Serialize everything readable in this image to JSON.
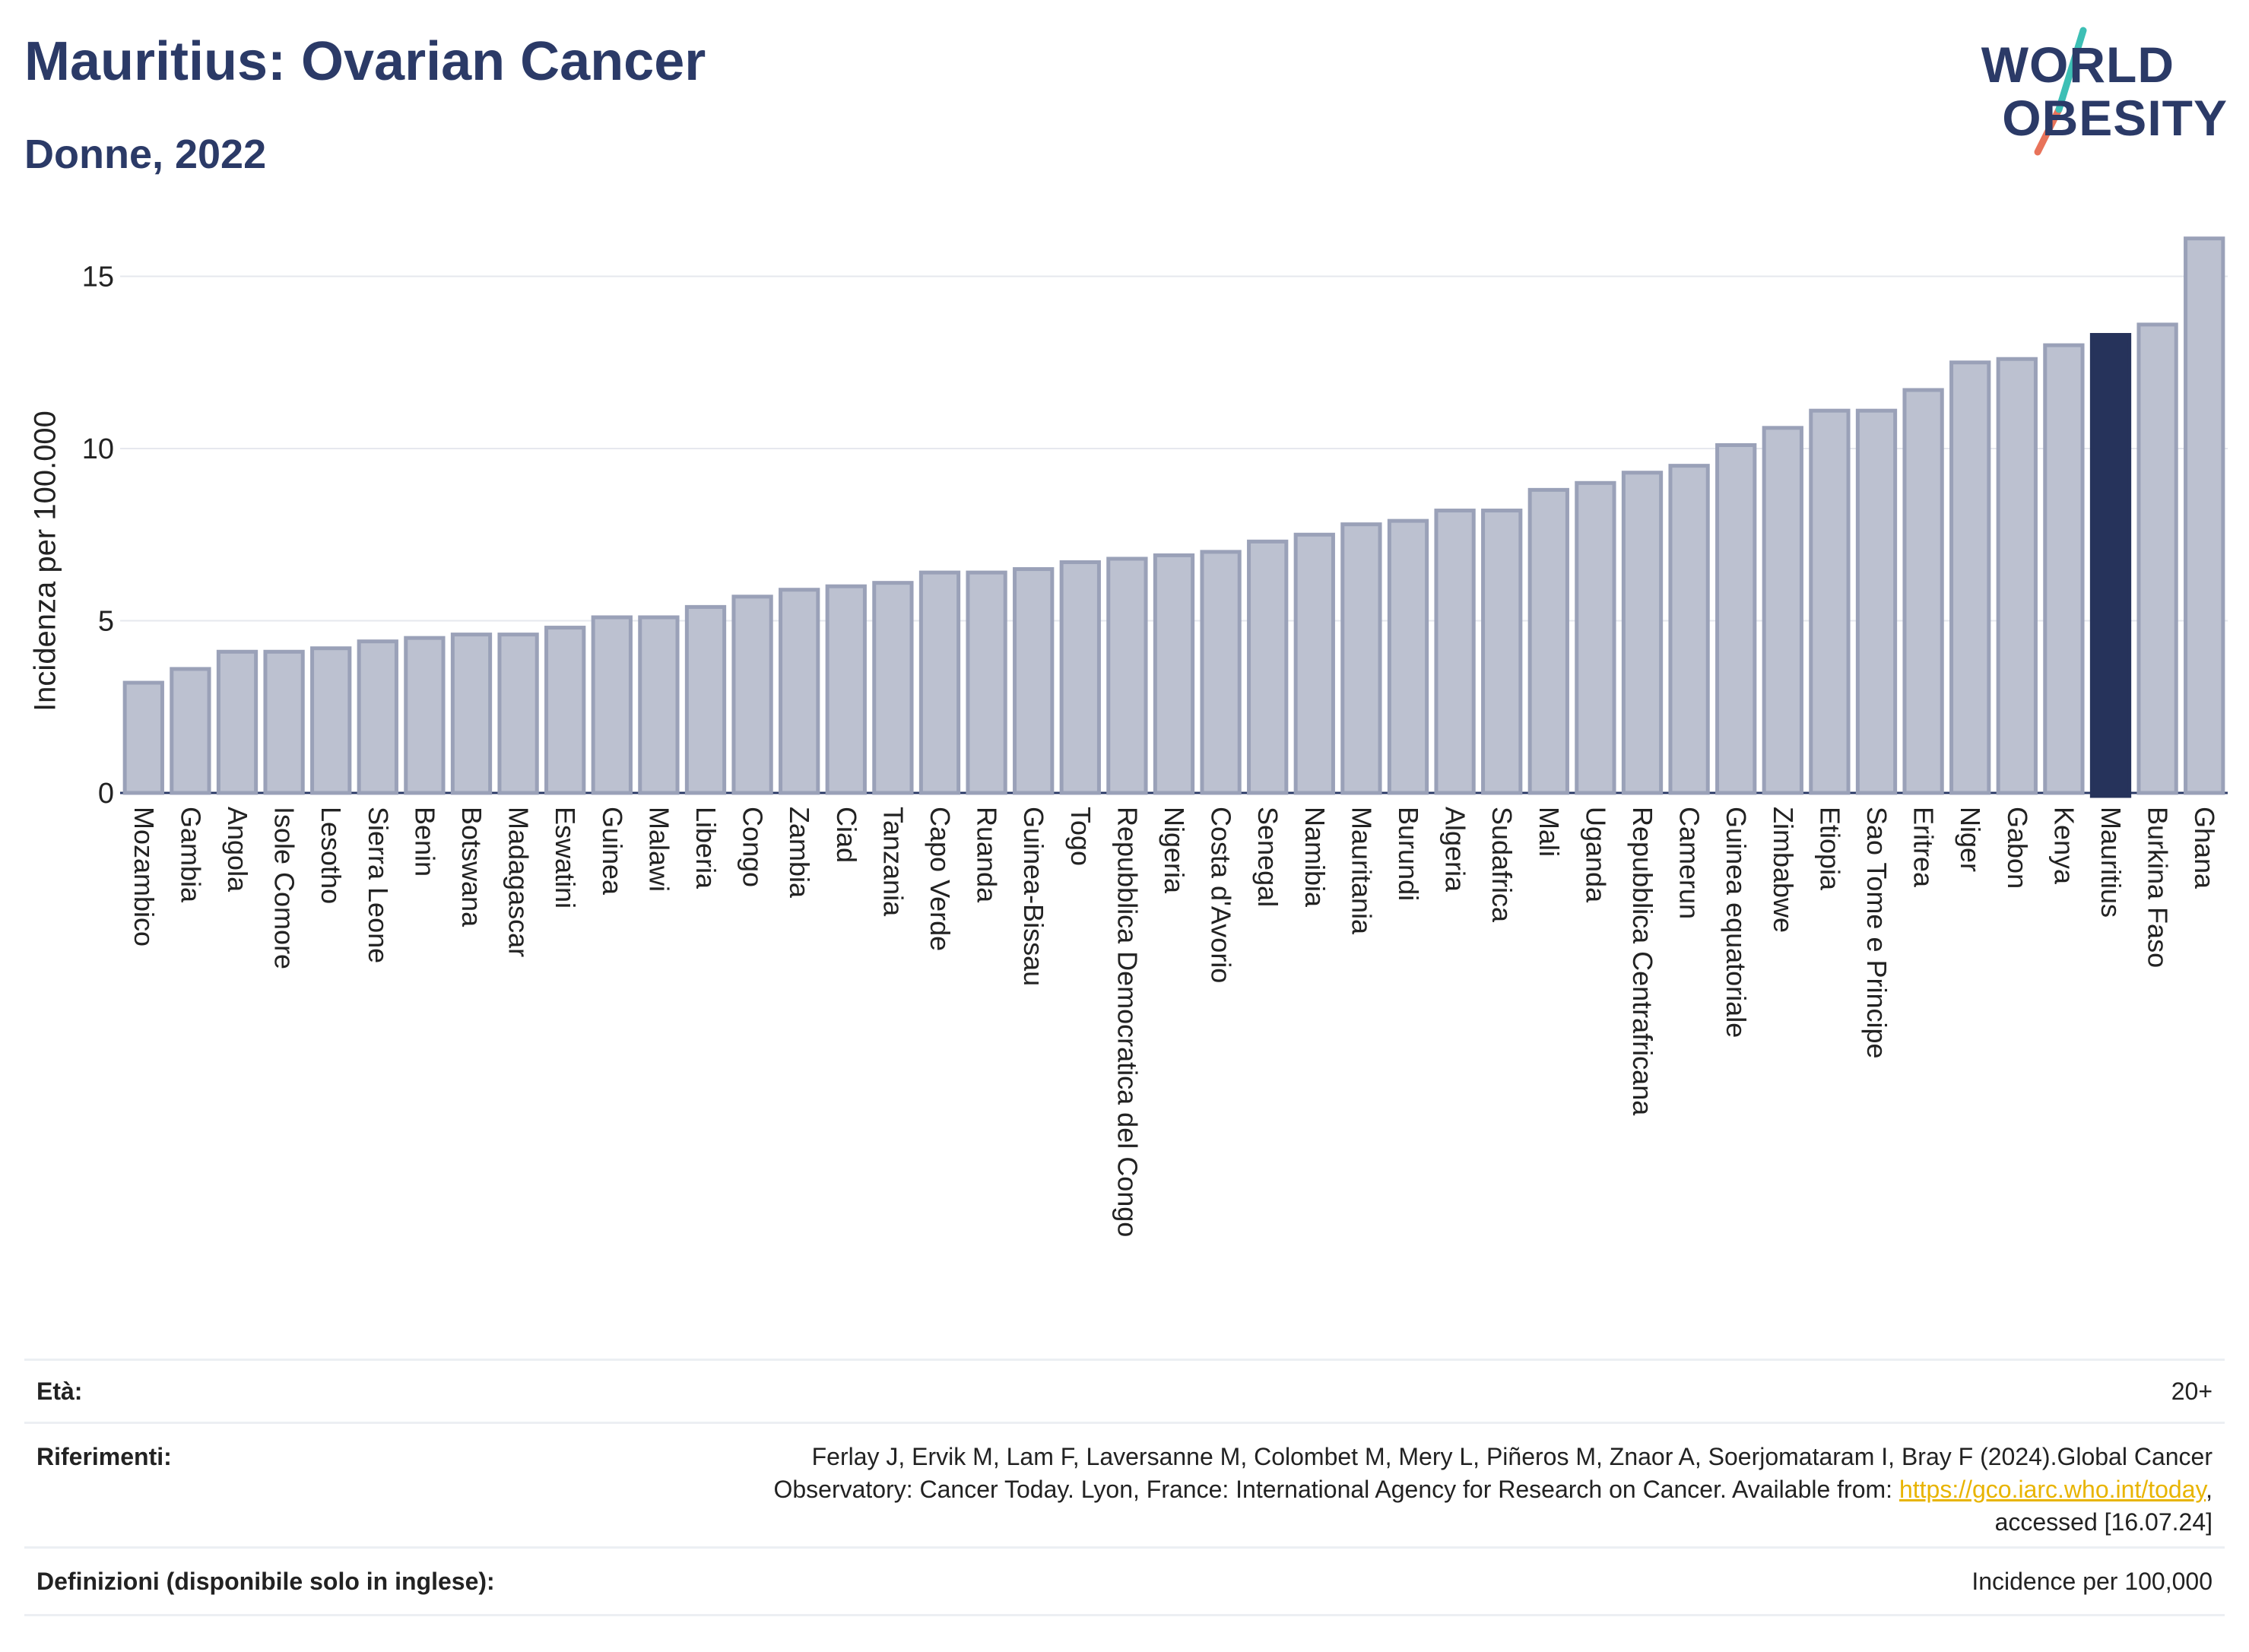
{
  "header": {
    "title": "Mauritius: Ovarian Cancer",
    "subtitle": "Donne, 2022"
  },
  "logo": {
    "line1": "WORLD",
    "line2": "OBESITY"
  },
  "chart_data": {
    "type": "bar",
    "ylabel": "Incidenza per 100.000",
    "ylim": [
      0,
      16.5
    ],
    "yticks": [
      0,
      5,
      10,
      15
    ],
    "grid": true,
    "highlight": "Mauritius",
    "colors": {
      "bar": "#bcc1d0",
      "bar_edge": "#9aa1b8",
      "highlight": "#26335b"
    },
    "categories": [
      "Mozambico",
      "Gambia",
      "Angola",
      "Isole Comore",
      "Lesotho",
      "Sierra Leone",
      "Benin",
      "Botswana",
      "Madagascar",
      "Eswatini",
      "Guinea",
      "Malawi",
      "Liberia",
      "Congo",
      "Zambia",
      "Ciad",
      "Tanzania",
      "Capo Verde",
      "Ruanda",
      "Guinea-Bissau",
      "Togo",
      "Repubblica Democratica del Congo",
      "Nigeria",
      "Costa d'Avorio",
      "Senegal",
      "Namibia",
      "Mauritania",
      "Burundi",
      "Algeria",
      "Sudafrica",
      "Mali",
      "Uganda",
      "Repubblica Centrafricana",
      "Camerun",
      "Guinea equatoriale",
      "Zimbabwe",
      "Etiopia",
      "Sao Tome e Principe",
      "Eritrea",
      "Niger",
      "Gabon",
      "Kenya",
      "Mauritius",
      "Burkina Faso",
      "Ghana"
    ],
    "values": [
      3.2,
      3.6,
      4.1,
      4.1,
      4.2,
      4.4,
      4.5,
      4.6,
      4.6,
      4.8,
      5.1,
      5.1,
      5.4,
      5.7,
      5.9,
      6.0,
      6.1,
      6.4,
      6.4,
      6.5,
      6.7,
      6.8,
      6.9,
      7.0,
      7.3,
      7.5,
      7.8,
      7.9,
      8.2,
      8.2,
      8.8,
      9.0,
      9.3,
      9.5,
      10.1,
      10.6,
      11.1,
      11.1,
      11.7,
      12.5,
      12.6,
      13.0,
      13.3,
      13.6,
      16.1
    ]
  },
  "info": {
    "age_label": "Età:",
    "age_value": "20+",
    "ref_label": "Riferimenti:",
    "ref_text1": "Ferlay J, Ervik M, Lam F, Laversanne M, Colombet M, Mery L, Piñeros M, Znaor A, Soerjomataram I, Bray F (2024).Global Cancer",
    "ref_text2": "Observatory: Cancer Today. Lyon, France: International Agency for Research on Cancer. Available from: ",
    "ref_link": "https://gco.iarc.who.int/today",
    "ref_text3": ",",
    "ref_text4": "accessed [16.07.24]",
    "def_label": "Definizioni (disponibile solo in inglese):",
    "def_value": "Incidence per 100,000"
  }
}
